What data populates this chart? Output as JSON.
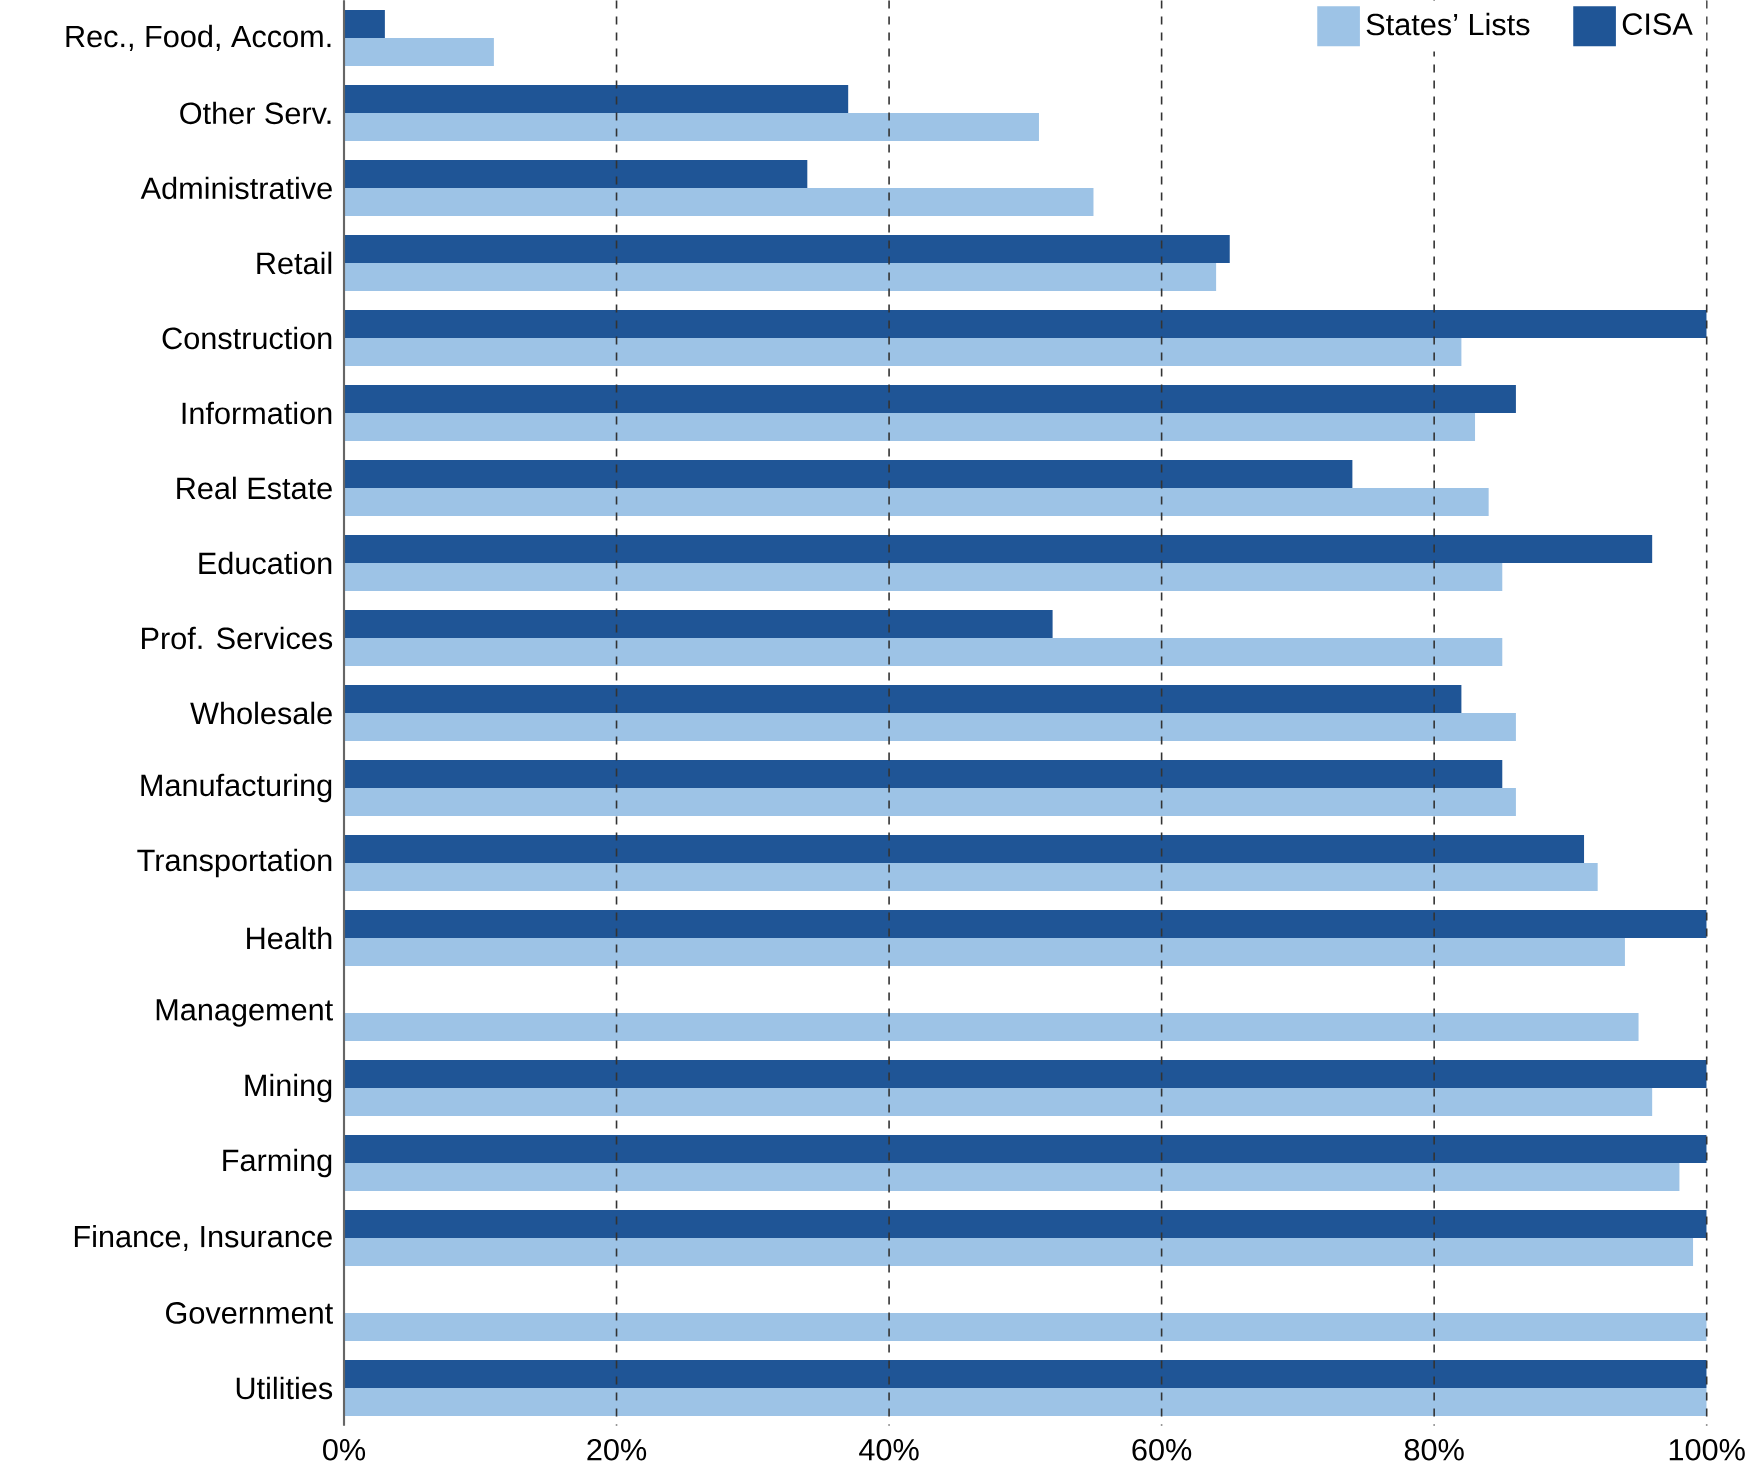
{
  "chart_data": {
    "type": "bar",
    "orientation": "horizontal",
    "categories": [
      "Rec., Food, Accom.",
      "Other Serv.",
      "Administrative",
      "Retail",
      "Construction",
      "Information",
      "Real Estate",
      "Education",
      "Prof. Services",
      "Wholesale",
      "Manufacturing",
      "Transportation",
      "Health",
      "Management",
      "Mining",
      "Farming",
      "Finance, Insurance",
      "Government",
      "Utilities"
    ],
    "series": [
      {
        "name": "States’ Lists",
        "color": "#9dc3e6",
        "values": [
          11,
          51,
          55,
          64,
          82,
          83,
          84,
          85,
          85,
          86,
          86,
          92,
          94,
          95,
          96,
          98,
          99,
          100,
          100
        ]
      },
      {
        "name": "CISA",
        "color": "#1f5596",
        "values": [
          3,
          37,
          34,
          65,
          100,
          86,
          74,
          96,
          52,
          82,
          85,
          91,
          100,
          null,
          100,
          100,
          100,
          null,
          100
        ]
      }
    ],
    "xlim": [
      0,
      100
    ],
    "xticks": [
      {
        "value": 0,
        "label": "0%"
      },
      {
        "value": 20,
        "label": "20%"
      },
      {
        "value": 40,
        "label": "40%"
      },
      {
        "value": 60,
        "label": "60%"
      },
      {
        "value": 80,
        "label": "80%"
      },
      {
        "value": 100,
        "label": "100%"
      }
    ],
    "grid": "x",
    "legend": "top right"
  }
}
